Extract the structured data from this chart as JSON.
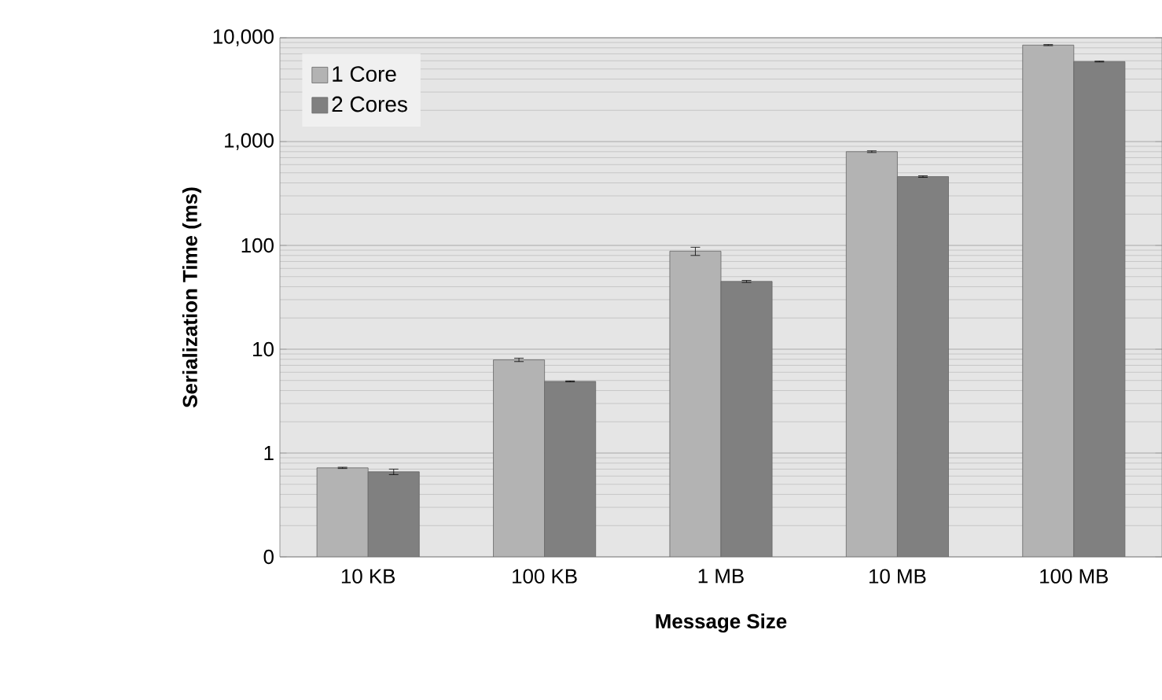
{
  "chart_data": {
    "type": "bar",
    "xlabel": "Message Size",
    "ylabel": "Serialization Time (ms)",
    "categories": [
      "10 KB",
      "100 KB",
      "1 MB",
      "10 MB",
      "100 MB"
    ],
    "series": [
      {
        "name": "1 Core",
        "color": "#b3b3b3",
        "values": [
          0.72,
          7.9,
          88,
          800,
          8500
        ],
        "errors": [
          0.01,
          0.3,
          8,
          15,
          100
        ]
      },
      {
        "name": "2 Cores",
        "color": "#808080",
        "values": [
          0.66,
          4.9,
          45,
          460,
          5900
        ],
        "errors": [
          0.04,
          0.05,
          1,
          8,
          50
        ]
      }
    ],
    "log": true,
    "ylim": [
      0.1,
      10000
    ],
    "yticks": [
      {
        "value": 0.1,
        "label": "0"
      },
      1,
      10,
      100,
      {
        "value": 1000,
        "label": "1,000"
      },
      {
        "value": 10000,
        "label": "10,000"
      }
    ],
    "grid": "y",
    "legend": "top left"
  }
}
